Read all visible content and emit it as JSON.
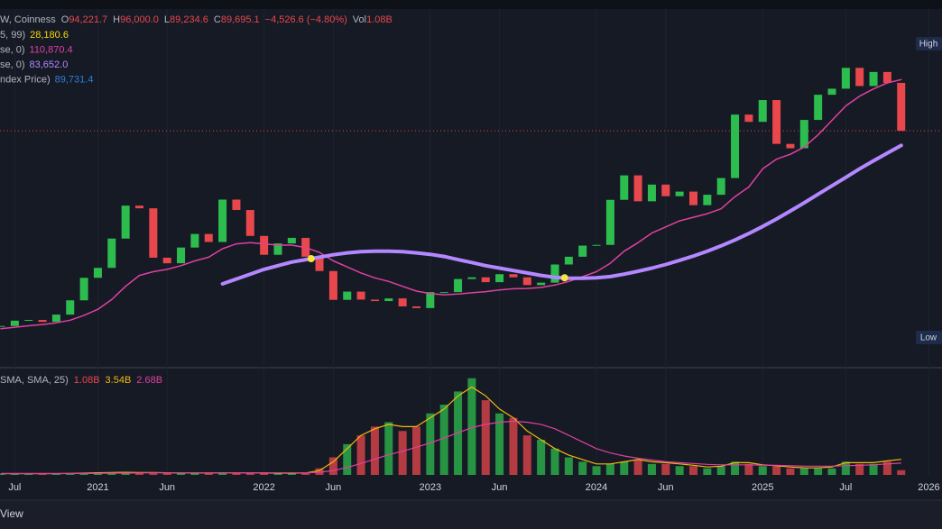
{
  "chart_data": {
    "type": "candlestick",
    "header": [
      {
        "label": "W, Coinness"
      },
      {
        "label": "O",
        "value": "94,221.7"
      },
      {
        "label": "H",
        "value": "96,000.0"
      },
      {
        "label": "L",
        "value": "89,234.6"
      },
      {
        "label": "C",
        "value": "89,695.1"
      },
      {
        "value": "−4,526.6 (−4.80%)"
      },
      {
        "label": "Vol",
        "value": "1.08B"
      }
    ],
    "indicators": [
      {
        "label": "5, 99)",
        "value": "28,180.6",
        "color": "#f5d90a"
      },
      {
        "label": "se, 0)",
        "value": "110,870.4",
        "color": "#e040a0"
      },
      {
        "label": "se, 0)",
        "value": "83,652.0",
        "color": "#b388ff"
      },
      {
        "label": "ndex Price)",
        "value": "89,731.4",
        "color": "#2f7dd8"
      }
    ],
    "color_up": "#2dbd4e",
    "color_down": "#e8474b",
    "ylim": [
      -7000,
      140000
    ],
    "close": [
      9100,
      11300,
      11600,
      10800,
      13800,
      19700,
      29000,
      33100,
      45200,
      58800,
      57700,
      37300,
      35000,
      41500,
      47100,
      43800,
      61300,
      57000,
      46300,
      38500,
      43200,
      45500,
      37700,
      31800,
      19900,
      23300,
      20000,
      19400,
      20500,
      17200,
      16500,
      23100,
      23100,
      28500,
      29200,
      27200,
      30500,
      29200,
      26000,
      27000,
      34500,
      37700,
      42300,
      42600,
      61200,
      71300,
      60600,
      67500,
      62700,
      64600,
      59000,
      63300,
      70200,
      96400,
      93400,
      102400,
      84300,
      82500,
      94200,
      104600,
      107100,
      115700,
      108200,
      114000,
      109500,
      89695.1
    ],
    "lines": [
      {
        "color": "#e040a0",
        "values": [
          8000,
          8600,
          9200,
          9700,
          10400,
          11500,
          13500,
          16000,
          20000,
          25500,
          30000,
          31500,
          32500,
          34000,
          36000,
          37500,
          41000,
          43000,
          43500,
          43000,
          42500,
          42500,
          41500,
          39500,
          36000,
          33500,
          31000,
          29000,
          27500,
          25500,
          23500,
          22500,
          22000,
          22300,
          22800,
          23300,
          24000,
          24500,
          24600,
          25000,
          26000,
          27500,
          29500,
          31500,
          35000,
          40000,
          43500,
          47500,
          50000,
          52500,
          54000,
          55500,
          57500,
          62500,
          66500,
          74000,
          78000,
          80000,
          83000,
          88000,
          94000,
          100000,
          104000,
          107000,
          109500,
          110870.4
        ]
      },
      {
        "color": "#b388ff",
        "values": [
          null,
          null,
          null,
          null,
          null,
          null,
          null,
          null,
          null,
          null,
          null,
          null,
          null,
          null,
          null,
          null,
          26500,
          28500,
          30500,
          32500,
          34000,
          35500,
          36500,
          37500,
          38500,
          39300,
          39800,
          40000,
          40000,
          39800,
          39300,
          38700,
          37800,
          36500,
          35300,
          34000,
          33000,
          32000,
          31000,
          30000,
          29200,
          28800,
          28800,
          29000,
          29500,
          30500,
          31700,
          33000,
          34500,
          36200,
          38000,
          40000,
          42200,
          44600,
          47300,
          50200,
          53300,
          56600,
          60000,
          63500,
          67000,
          70500,
          74000,
          77300,
          80500,
          83652.0
        ]
      }
    ],
    "crosses": [
      {
        "x": 22.4,
        "value": 36900,
        "color": "#f5e642"
      },
      {
        "x": 40.7,
        "value": 29000,
        "color": "#f5e642"
      }
    ],
    "xticks": [
      {
        "value": 1,
        "label": "Jul"
      },
      {
        "value": 7,
        "label": "2021"
      },
      {
        "value": 12,
        "label": "Jun"
      },
      {
        "value": 19,
        "label": "2022"
      },
      {
        "value": 24,
        "label": "Jun"
      },
      {
        "value": 31,
        "label": "2023"
      },
      {
        "value": 36,
        "label": "Jun"
      },
      {
        "value": 43,
        "label": "2024"
      },
      {
        "value": 48,
        "label": "Jun"
      },
      {
        "value": 55,
        "label": "2025"
      },
      {
        "value": 61,
        "label": "Jul"
      },
      {
        "value": 67,
        "label": "2026"
      }
    ],
    "grid": true,
    "high_badge": "High",
    "low_badge": "Low",
    "volume": {
      "label": "SMA, SMA, 25)",
      "value_texts": [
        {
          "value": "1.08B",
          "color": "#e8474b"
        },
        {
          "value": "3.54B",
          "color": "#f0b90b"
        },
        {
          "value": "2.68B",
          "color": "#e040a0"
        }
      ],
      "ylim": [
        0,
        24
      ],
      "values": [
        0.3,
        0.3,
        0.3,
        0.3,
        0.3,
        0.4,
        0.5,
        0.6,
        0.6,
        0.6,
        0.5,
        0.6,
        0.5,
        0.4,
        0.4,
        0.5,
        0.5,
        0.5,
        0.5,
        0.4,
        0.4,
        0.4,
        0.5,
        1.5,
        4,
        7,
        9,
        11,
        12,
        10,
        11,
        14,
        16,
        19,
        22,
        17,
        14,
        13,
        9,
        8,
        6,
        4,
        3,
        2,
        2.5,
        3,
        3.5,
        2.5,
        2.5,
        2,
        2,
        1.5,
        2,
        3,
        2.5,
        2,
        2,
        1.5,
        1.5,
        1.5,
        1.5,
        3,
        2.5,
        2.5,
        3,
        1.08
      ],
      "lines": [
        {
          "color": "#f0b90b",
          "values": [
            0.3,
            0.3,
            0.3,
            0.3,
            0.3,
            0.35,
            0.4,
            0.5,
            0.55,
            0.6,
            0.55,
            0.55,
            0.5,
            0.45,
            0.45,
            0.45,
            0.5,
            0.5,
            0.5,
            0.45,
            0.4,
            0.4,
            0.45,
            1,
            3,
            6,
            9,
            10.5,
            11.5,
            11,
            11,
            13,
            15,
            18,
            20,
            18,
            15,
            13,
            10,
            8,
            6,
            4.5,
            3.5,
            2.5,
            2.5,
            3,
            3.5,
            3,
            2.8,
            2.5,
            2.2,
            1.8,
            2,
            2.8,
            2.8,
            2.3,
            2.1,
            1.8,
            1.6,
            1.6,
            1.8,
            2.8,
            2.8,
            2.8,
            3.2,
            3.54
          ]
        },
        {
          "color": "#e040a0",
          "values": [
            0.3,
            0.3,
            0.3,
            0.3,
            0.3,
            0.3,
            0.32,
            0.35,
            0.4,
            0.42,
            0.45,
            0.47,
            0.48,
            0.48,
            0.48,
            0.48,
            0.49,
            0.5,
            0.5,
            0.5,
            0.48,
            0.47,
            0.47,
            0.6,
            1,
            1.7,
            2.6,
            3.6,
            4.6,
            5.4,
            6.3,
            7.3,
            8.4,
            9.6,
            10.8,
            11.5,
            12,
            12.2,
            12,
            11.5,
            10.5,
            9,
            7.5,
            6,
            5,
            4.3,
            3.8,
            3.4,
            3,
            2.8,
            2.6,
            2.4,
            2.3,
            2.3,
            2.3,
            2.2,
            2.2,
            2.1,
            2,
            2,
            2,
            2.1,
            2.2,
            2.3,
            2.5,
            2.68
          ]
        }
      ]
    },
    "footer": "View"
  }
}
